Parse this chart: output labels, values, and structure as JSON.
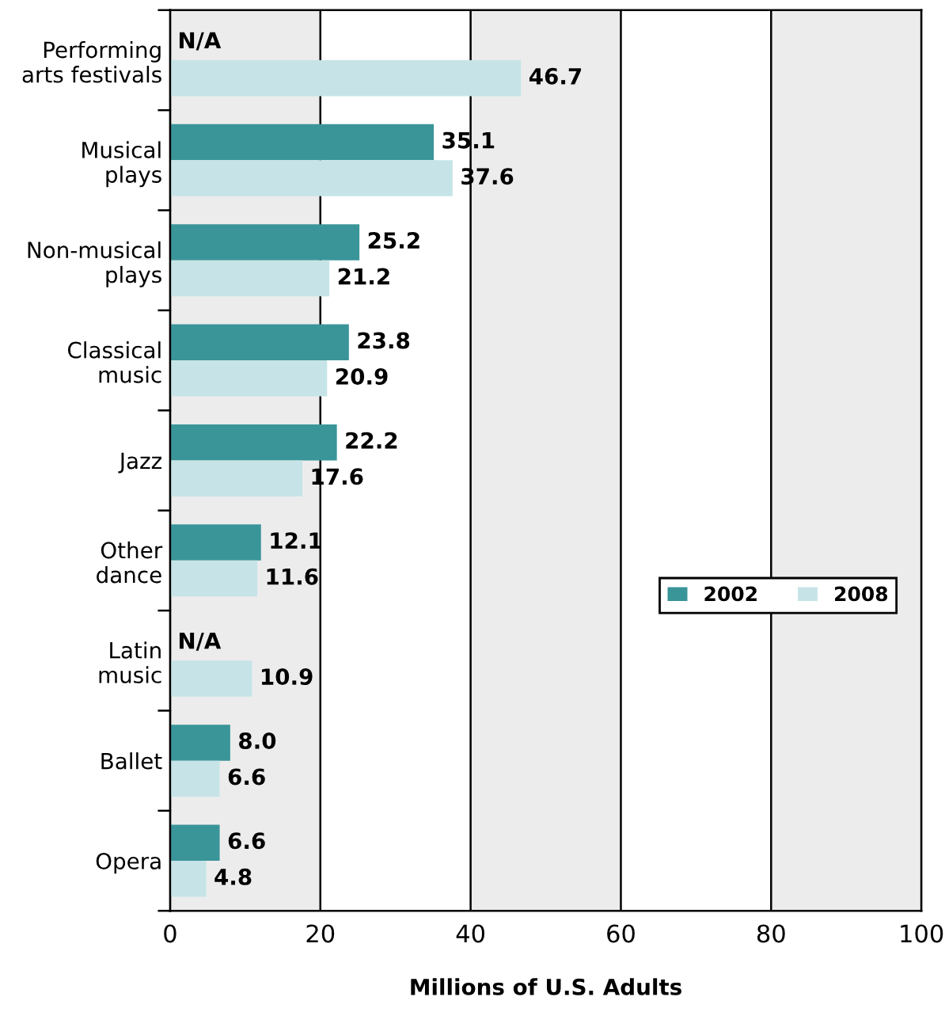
{
  "chart_data": {
    "type": "bar",
    "orientation": "horizontal",
    "xlabel": "Millions of U.S. Adults",
    "categories": [
      "Performing\narts festivals",
      "Musical\nplays",
      "Non-musical\nplays",
      "Classical\nmusic",
      "Jazz",
      "Other\ndance",
      "Latin\nmusic",
      "Ballet",
      "Opera"
    ],
    "series": [
      {
        "name": "2002",
        "color": "#3a9599",
        "values": [
          null,
          35.1,
          25.2,
          23.8,
          22.2,
          12.1,
          null,
          8.0,
          6.6
        ],
        "value_labels": [
          "N/A",
          "35.1",
          "25.2",
          "23.8",
          "22.2",
          "12.1",
          "N/A",
          "8.0",
          "6.6"
        ]
      },
      {
        "name": "2008",
        "color": "#c6e4e7",
        "values": [
          46.7,
          37.6,
          21.2,
          20.9,
          17.6,
          11.6,
          10.9,
          6.6,
          4.8
        ],
        "value_labels": [
          "46.7",
          "37.6",
          "21.2",
          "20.9",
          "17.6",
          "11.6",
          "10.9",
          "6.6",
          "4.8"
        ]
      }
    ],
    "xlim": [
      0,
      100
    ],
    "xticks": [
      0,
      20,
      40,
      60,
      80,
      100
    ],
    "grid": "x",
    "legend": "right",
    "bands": [
      {
        "axis": "x",
        "from": 0,
        "to": 20,
        "color": "#ececec"
      },
      {
        "axis": "x",
        "from": 40,
        "to": 60,
        "color": "#ececec"
      },
      {
        "axis": "x",
        "from": 80,
        "to": 100,
        "color": "#ececec"
      }
    ]
  }
}
